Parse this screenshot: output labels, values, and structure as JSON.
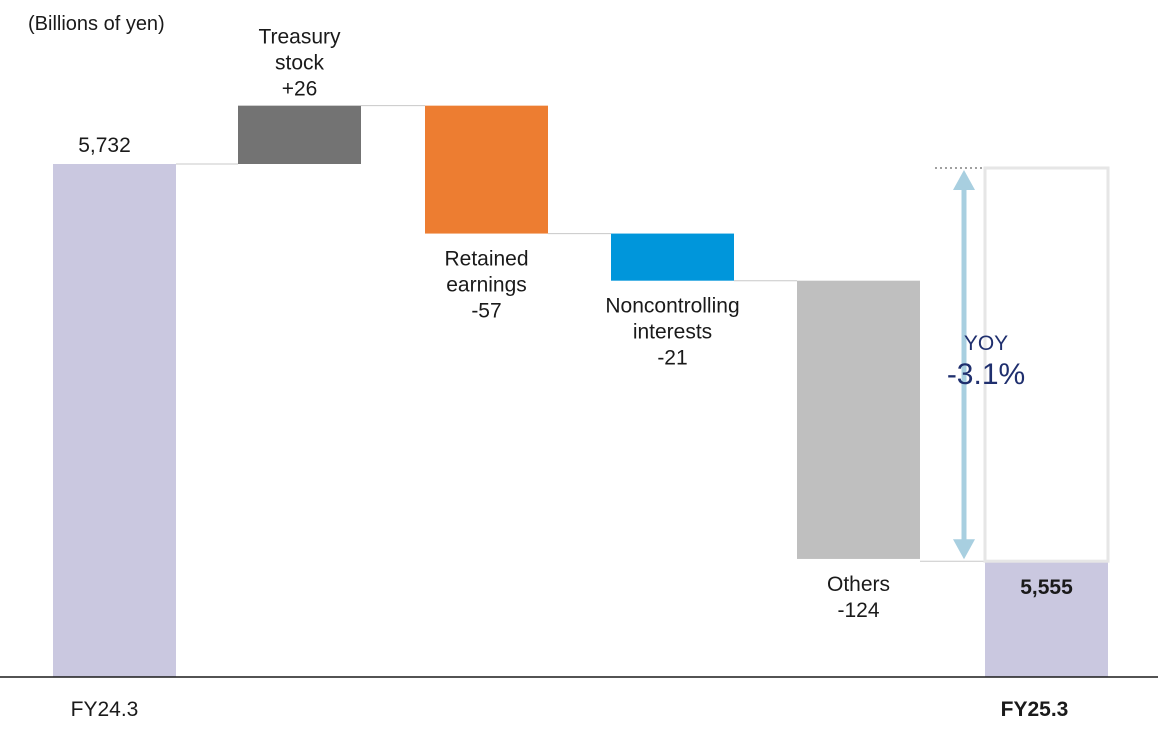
{
  "chart_data": {
    "type": "waterfall",
    "unit_label": "(Billions of yen)",
    "start": {
      "category": "FY24.3",
      "value": 5732,
      "label": "5,732"
    },
    "end": {
      "category": "FY25.3",
      "value": 5555,
      "label": "5,555"
    },
    "steps": [
      {
        "name_lines": [
          "Treasury",
          "stock"
        ],
        "value": 26,
        "value_label": "+26",
        "color": "#737373"
      },
      {
        "name_lines": [
          "Retained",
          "earnings"
        ],
        "value": -57,
        "value_label": "-57",
        "color": "#ed7d31"
      },
      {
        "name_lines": [
          "Noncontrolling",
          "interests"
        ],
        "value": -21,
        "value_label": "-21",
        "color": "#0096db"
      },
      {
        "name_lines": [
          "Others"
        ],
        "value": -124,
        "value_label": "-124",
        "color": "#bfbfbf"
      }
    ],
    "total_color": "#cac8e0",
    "yoy": {
      "label": "YOY",
      "value": "-3.1%",
      "arrow_color": "#a8cfe0"
    }
  }
}
